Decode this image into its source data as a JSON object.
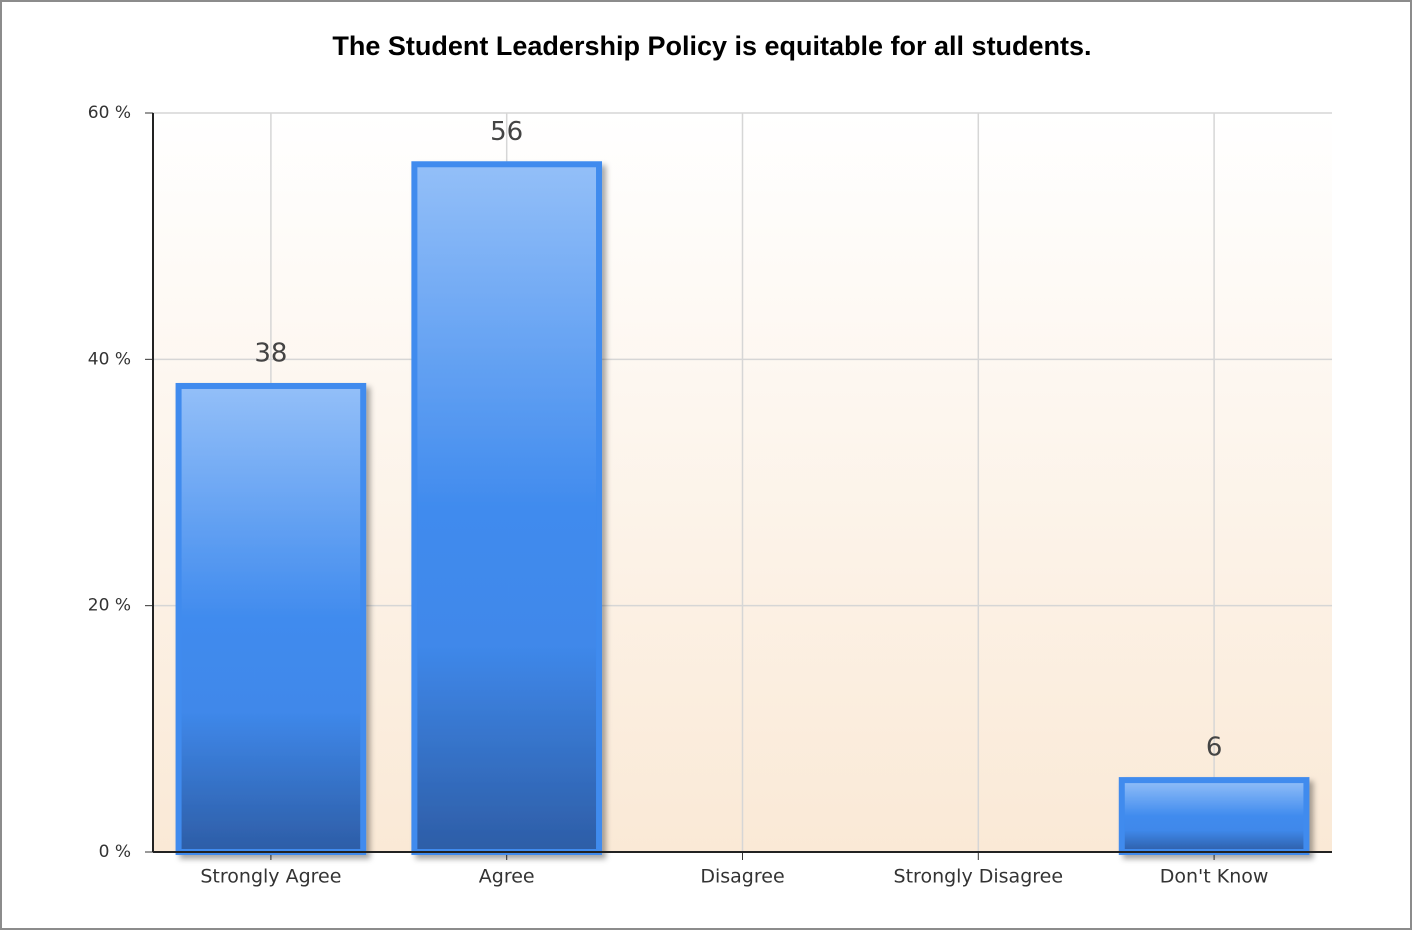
{
  "chart_data": {
    "type": "bar",
    "title": "The Student Leadership Policy is equitable for all students.",
    "categories": [
      "Strongly Agree",
      "Agree",
      "Disagree",
      "Strongly Disagree",
      "Don't Know"
    ],
    "values": [
      38,
      56,
      0,
      0,
      6
    ],
    "color": "#3f8bee",
    "ylim": [
      0,
      60
    ],
    "yticks": [
      {
        "value": 0,
        "label": "0 %"
      },
      {
        "value": 20,
        "label": "20 %"
      },
      {
        "value": 40,
        "label": "40 %"
      },
      {
        "value": 60,
        "label": "60 %"
      }
    ],
    "grid": true
  }
}
